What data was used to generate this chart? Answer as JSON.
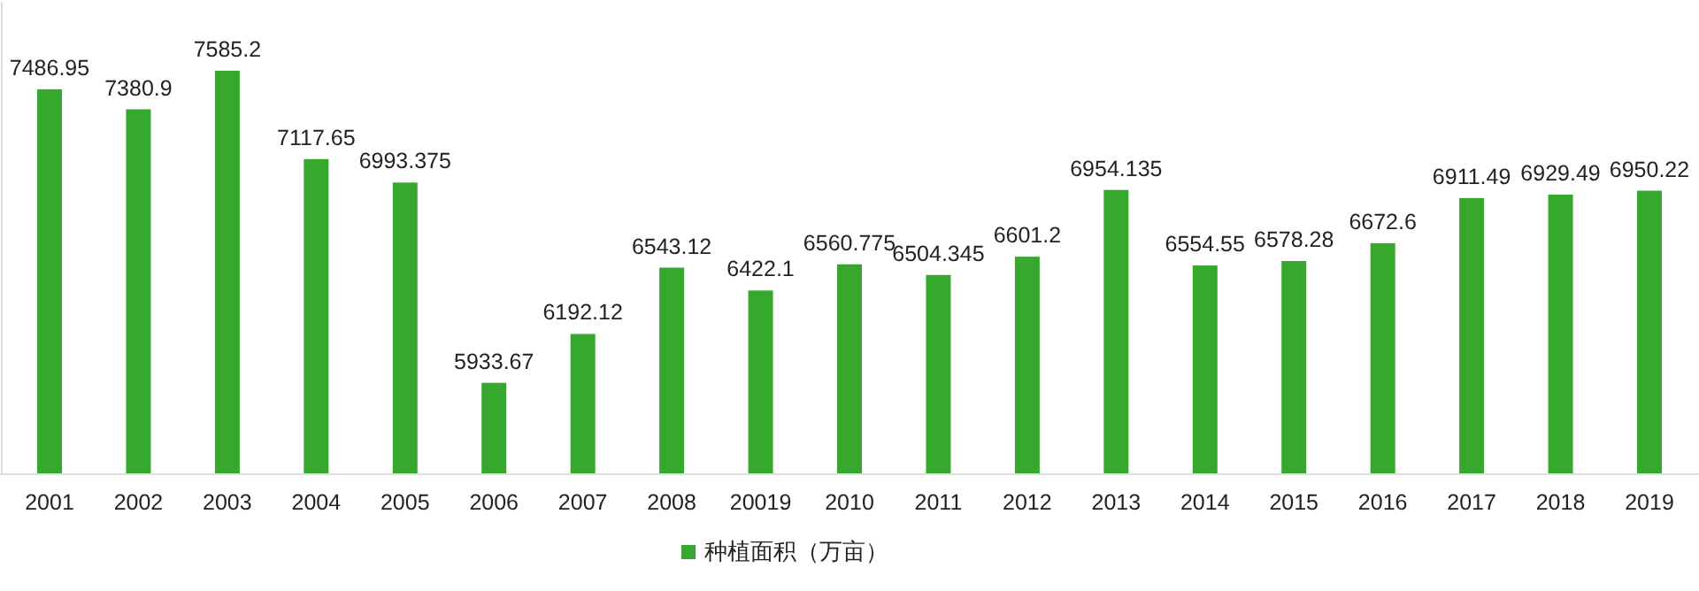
{
  "chart_data": {
    "type": "bar",
    "categories": [
      "2001",
      "2002",
      "2003",
      "2004",
      "2005",
      "2006",
      "2007",
      "2008",
      "20019",
      "2010",
      "2011",
      "2012",
      "2013",
      "2014",
      "2015",
      "2016",
      "2017",
      "2018",
      "2019"
    ],
    "series": [
      {
        "name": "种植面积（万亩）",
        "color": "#36a82e",
        "values": [
          7486.95,
          7380.9,
          7585.2,
          7117.65,
          6993.375,
          5933.67,
          6192.12,
          6543.12,
          6422.1,
          6560.775,
          6504.345,
          6601.2,
          6954.135,
          6554.55,
          6578.28,
          6672.6,
          6911.49,
          6929.49,
          6950.22
        ]
      }
    ],
    "data_labels": true,
    "ylim": [
      5450,
      7950
    ],
    "legend": "bottom"
  }
}
